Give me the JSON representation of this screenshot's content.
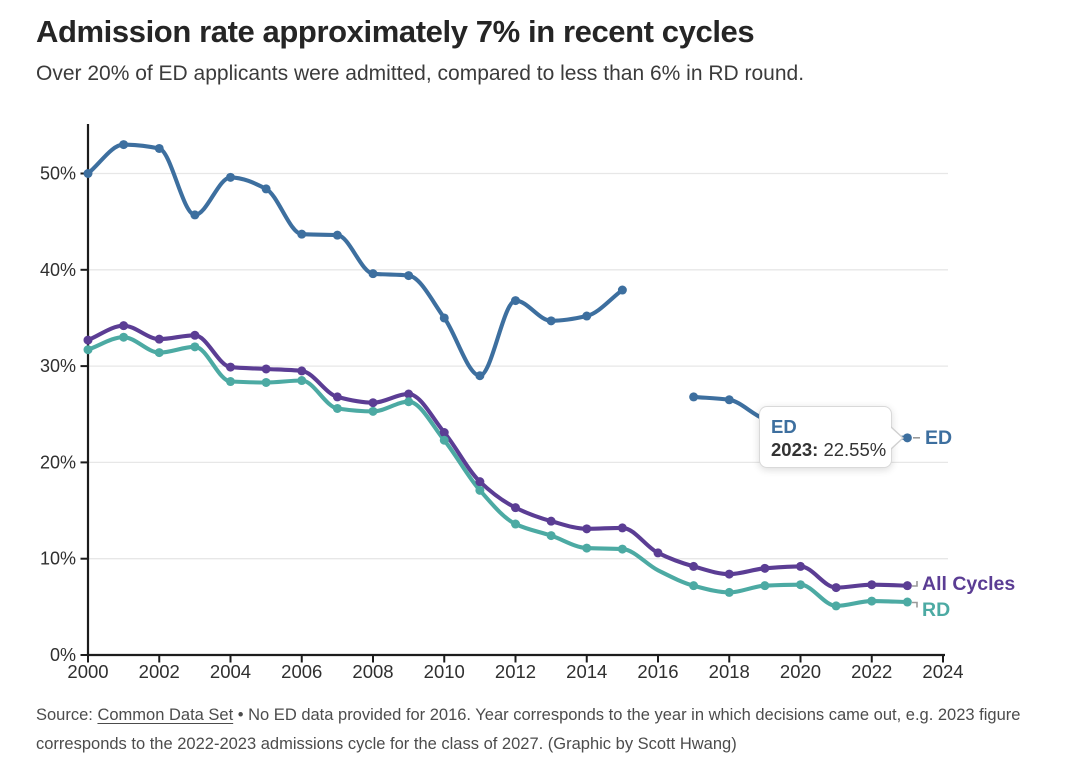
{
  "header": {
    "title": "Admission rate approximately 7% in recent cycles",
    "subtitle": "Over 20% of ED applicants were admitted, compared to less than 6% in RD round."
  },
  "tooltip": {
    "series_label": "ED",
    "year_label": "2023:",
    "value_label": "22.55%"
  },
  "footer": {
    "source_prefix": "Source: ",
    "source_link": "Common Data Set",
    "line1_rest": " • No ED data provided for 2016. Year corresponds to the year in which decisions came out, e.g. 2023 figure corresponds to the 2022-2023 admissions cycle for the class of 2027. (Graphic by Scott Hwang)"
  },
  "chart_data": {
    "type": "line",
    "x": [
      2000,
      2001,
      2002,
      2003,
      2004,
      2005,
      2006,
      2007,
      2008,
      2009,
      2010,
      2011,
      2012,
      2013,
      2014,
      2015,
      2016,
      2017,
      2018,
      2019,
      2020,
      2021,
      2022,
      2023
    ],
    "series": [
      {
        "name": "ED",
        "color": "#3d6f9f",
        "values": [
          50.0,
          53.0,
          52.6,
          45.7,
          49.6,
          48.4,
          43.7,
          43.6,
          39.6,
          39.4,
          35.0,
          29.0,
          36.8,
          34.7,
          35.2,
          37.9,
          null,
          26.8,
          26.5,
          24.5,
          23.7,
          23.0,
          22.7,
          22.55
        ],
        "no_marker_years": [
          2019,
          2020,
          2021,
          2022
        ],
        "end_label": "ED"
      },
      {
        "name": "All Cycles",
        "color": "#5b3d94",
        "values": [
          32.7,
          34.2,
          32.8,
          33.2,
          29.9,
          29.7,
          29.5,
          26.8,
          26.2,
          27.1,
          23.1,
          18.0,
          15.3,
          13.9,
          13.1,
          13.2,
          10.6,
          9.2,
          8.4,
          9.0,
          9.2,
          7.0,
          7.3,
          7.2
        ],
        "no_marker_years": [],
        "end_label": "All Cycles"
      },
      {
        "name": "RD",
        "color": "#4caaa3",
        "values": [
          31.7,
          33.0,
          31.4,
          32.0,
          28.4,
          28.3,
          28.5,
          25.6,
          25.3,
          26.3,
          22.3,
          17.1,
          13.6,
          12.4,
          11.1,
          11.0,
          8.8,
          7.2,
          6.5,
          7.2,
          7.3,
          5.1,
          5.6,
          5.5
        ],
        "no_marker_years": [
          2016
        ],
        "end_label": "RD"
      }
    ],
    "title": "Admission rate approximately 7% in recent cycles",
    "xlabel": "",
    "ylabel": "",
    "xlim": [
      2000,
      2024
    ],
    "ylim": [
      0,
      55
    ],
    "grid": "horizontal-only",
    "legend_position": "line-end-labels-right",
    "y_ticks": [
      {
        "value": 0,
        "label": "0%"
      },
      {
        "value": 10,
        "label": "10%"
      },
      {
        "value": 20,
        "label": "20%"
      },
      {
        "value": 30,
        "label": "30%"
      },
      {
        "value": 40,
        "label": "40%"
      },
      {
        "value": 50,
        "label": "50%"
      }
    ],
    "x_ticks": [
      2000,
      2002,
      2004,
      2006,
      2008,
      2010,
      2012,
      2014,
      2016,
      2018,
      2020,
      2022,
      2024
    ],
    "annotation": {
      "series": "ED",
      "year": 2023,
      "text": "2023: 22.55%"
    }
  },
  "style": {
    "grid_color": "#e7e7e7",
    "axis_color": "#1c1c1c",
    "tick_label_color": "#2f2f2f",
    "leader_color": "#9a9a9a"
  }
}
